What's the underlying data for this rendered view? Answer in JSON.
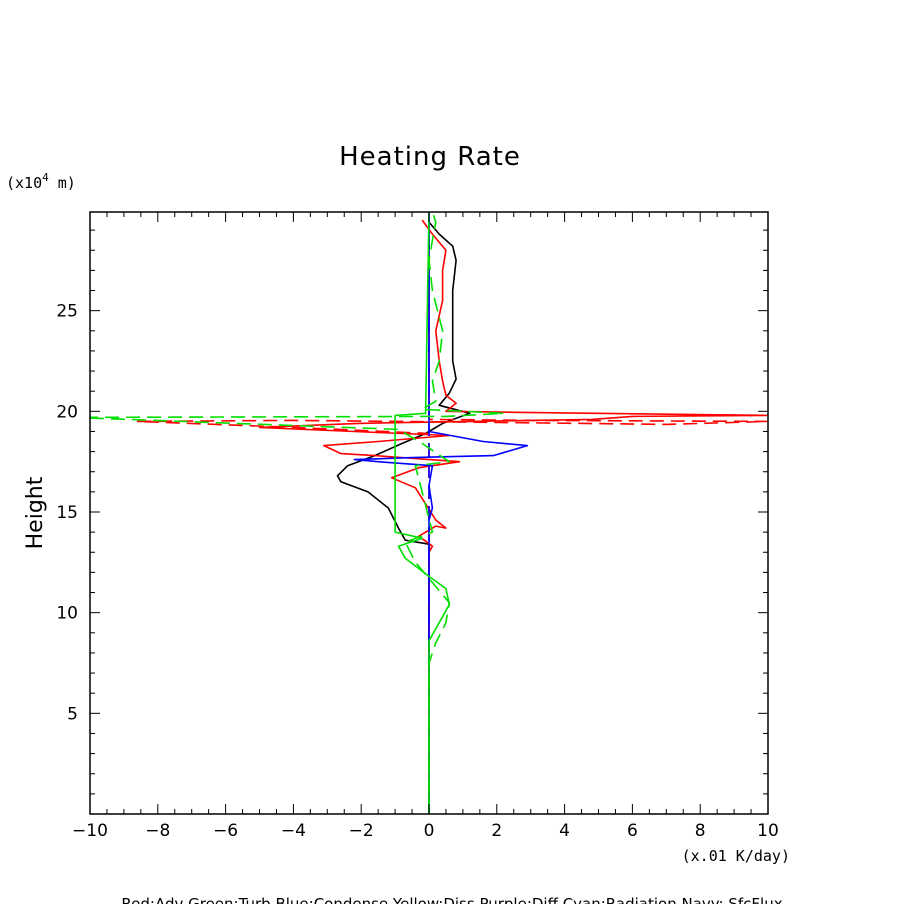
{
  "chart_data": {
    "type": "line",
    "title": "Heating Rate",
    "xlabel": "(x.01 K/day)",
    "ylabel": "Height",
    "y_unit_prefix": "(x10",
    "y_unit_exp": "4",
    "y_unit_suffix": " m)",
    "xlim": [
      -10,
      10
    ],
    "ylim": [
      0,
      29.9
    ],
    "x_ticks": [
      -10,
      -8,
      -6,
      -4,
      -2,
      0,
      2,
      4,
      6,
      8,
      10
    ],
    "x_tick_labels": [
      "−10",
      "−8",
      "−6",
      "−4",
      "−2",
      "0",
      "2",
      "4",
      "6",
      "8",
      "10"
    ],
    "y_ticks": [
      5,
      10,
      15,
      20,
      25
    ],
    "y_tick_labels": [
      "5",
      "10",
      "15",
      "20",
      "25"
    ],
    "legend_text": "Red:Adv  Green:Turb  Blue:Condense  Yellow:Diss  Purple:Diff  Cyan:Radiation  Navy: SfcFlux",
    "grid": false,
    "colors": {
      "black": "#000000",
      "red": "#ff0000",
      "green": "#00e000",
      "blue": "#0000ff"
    },
    "series": [
      {
        "color": "black",
        "dash": "solid",
        "points": [
          [
            0,
            0
          ],
          [
            0,
            12
          ],
          [
            0,
            13.4
          ],
          [
            -0.7,
            13.6
          ],
          [
            -0.9,
            14.2
          ],
          [
            -1.2,
            15.2
          ],
          [
            -1.8,
            16
          ],
          [
            -2.6,
            16.5
          ],
          [
            -2.7,
            16.8
          ],
          [
            -2.4,
            17.3
          ],
          [
            -1.6,
            17.8
          ],
          [
            -0.8,
            18.4
          ],
          [
            -0.1,
            18.9
          ],
          [
            0.4,
            19.4
          ],
          [
            1.2,
            19.9
          ],
          [
            0.3,
            20.3
          ],
          [
            0.6,
            20.9
          ],
          [
            0.8,
            21.6
          ],
          [
            0.7,
            22.5
          ],
          [
            0.7,
            24
          ],
          [
            0.7,
            26
          ],
          [
            0.8,
            27.5
          ],
          [
            0.7,
            28.2
          ],
          [
            0.3,
            28.8
          ],
          [
            0,
            29.4
          ]
        ]
      },
      {
        "color": "red",
        "dash": "solid",
        "points": [
          [
            0,
            0
          ],
          [
            0,
            13
          ],
          [
            0.1,
            13.3
          ],
          [
            -0.3,
            13.8
          ],
          [
            0.2,
            14.3
          ],
          [
            0.5,
            14.2
          ],
          [
            0.2,
            14.6
          ],
          [
            -0.1,
            15.4
          ],
          [
            -0.4,
            16.2
          ],
          [
            -1.1,
            16.7
          ],
          [
            -0.3,
            17.2
          ],
          [
            0.9,
            17.5
          ],
          [
            -1.6,
            17.8
          ],
          [
            -2.6,
            17.9
          ],
          [
            -3.1,
            18.3
          ],
          [
            -1.5,
            18.5
          ],
          [
            0.6,
            18.8
          ],
          [
            -2.2,
            19
          ],
          [
            -5,
            19.2
          ],
          [
            -2.1,
            19.4
          ],
          [
            1.2,
            19.5
          ],
          [
            4.8,
            19.6
          ],
          [
            6,
            19.75
          ],
          [
            10,
            19.8
          ],
          [
            2.5,
            19.95
          ],
          [
            0.5,
            20
          ],
          [
            0.8,
            20.4
          ],
          [
            0.5,
            20.8
          ],
          [
            0.4,
            21.5
          ],
          [
            0.3,
            22.5
          ],
          [
            0.2,
            24
          ],
          [
            0.4,
            25.5
          ],
          [
            0.4,
            27
          ],
          [
            0.5,
            28
          ],
          [
            0.1,
            28.8
          ],
          [
            -0.2,
            29.5
          ]
        ]
      },
      {
        "color": "red",
        "dash": "dashed",
        "points": [
          [
            0,
            0
          ],
          [
            0,
            18.9
          ],
          [
            -4,
            19.2
          ],
          [
            -8.6,
            19.5
          ],
          [
            -4,
            19.55
          ],
          [
            2,
            19.45
          ],
          [
            7,
            19.35
          ],
          [
            10,
            19.5
          ],
          [
            3,
            19.55
          ],
          [
            0,
            19.6
          ],
          [
            0,
            29.9
          ]
        ]
      },
      {
        "color": "blue",
        "dash": "solid",
        "points": [
          [
            0,
            0
          ],
          [
            0,
            14.6
          ],
          [
            0.1,
            15.2
          ],
          [
            0,
            16.3
          ],
          [
            0.1,
            17.3
          ],
          [
            -1.5,
            17.5
          ],
          [
            -2.2,
            17.6
          ],
          [
            -0.5,
            17.7
          ],
          [
            1.9,
            17.8
          ],
          [
            2.9,
            18.3
          ],
          [
            1.6,
            18.5
          ],
          [
            0,
            19
          ],
          [
            0,
            29.9
          ]
        ]
      },
      {
        "color": "blue",
        "dash": "dashed",
        "points": [
          [
            0,
            0
          ],
          [
            0,
            29.9
          ]
        ]
      },
      {
        "color": "green",
        "dash": "solid",
        "points": [
          [
            0,
            0
          ],
          [
            0,
            8.6
          ],
          [
            0.3,
            9.5
          ],
          [
            0.6,
            10.4
          ],
          [
            0.5,
            11.2
          ],
          [
            0,
            11.8
          ],
          [
            -0.7,
            12.7
          ],
          [
            -0.9,
            13.3
          ],
          [
            -0.2,
            13.7
          ],
          [
            -1,
            14
          ],
          [
            -1,
            19.8
          ],
          [
            -0.1,
            19.9
          ],
          [
            0,
            29.9
          ]
        ]
      },
      {
        "color": "green",
        "dash": "dashed",
        "points": [
          [
            0,
            0
          ],
          [
            0,
            7.5
          ],
          [
            0.2,
            8.5
          ],
          [
            0.5,
            9.5
          ],
          [
            0.6,
            10.5
          ],
          [
            0.1,
            11.5
          ],
          [
            -0.4,
            12.5
          ],
          [
            -0.7,
            13.5
          ],
          [
            0.1,
            14
          ],
          [
            -0.4,
            17.3
          ],
          [
            0.6,
            17.5
          ],
          [
            -0.2,
            18.4
          ],
          [
            -0.9,
            19.1
          ],
          [
            -10.5,
            19.7
          ],
          [
            0.5,
            19.75
          ],
          [
            2.2,
            19.9
          ],
          [
            -0.2,
            20.1
          ],
          [
            0.2,
            20.5
          ],
          [
            0.1,
            21.5
          ],
          [
            0.3,
            22.5
          ],
          [
            0.4,
            24
          ],
          [
            0.1,
            26
          ],
          [
            0,
            27.5
          ],
          [
            0.1,
            28.5
          ],
          [
            0.2,
            29.4
          ],
          [
            0.1,
            29.9
          ]
        ]
      }
    ]
  }
}
